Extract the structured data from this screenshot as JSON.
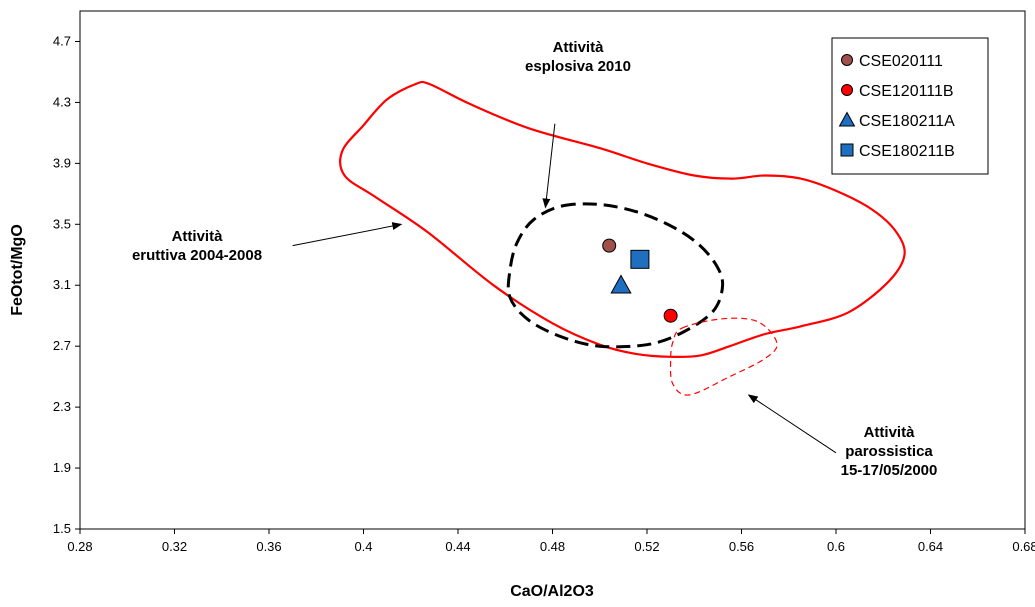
{
  "chart_data": {
    "type": "scatter",
    "xlabel": "CaO/Al2O3",
    "ylabel": "FeOtot/MgO",
    "xlim": [
      0.28,
      0.68
    ],
    "ylim": [
      1.5,
      4.9
    ],
    "x_ticks": [
      "0.28",
      "0.32",
      "0.36",
      "0.4",
      "0.44",
      "0.48",
      "0.52",
      "0.56",
      "0.6",
      "0.64",
      "0.68"
    ],
    "y_ticks": [
      "1.5",
      "1.9",
      "2.3",
      "2.7",
      "3.1",
      "3.5",
      "3.9",
      "4.3",
      "4.7"
    ],
    "grid": false,
    "legend_position": "top-right",
    "series": [
      {
        "name": "CSE020111",
        "marker": "circle",
        "color": "#a0504b",
        "points": [
          {
            "x": 0.504,
            "y": 3.36
          }
        ]
      },
      {
        "name": "CSE120111B",
        "marker": "circle",
        "color": "#ff0000",
        "points": [
          {
            "x": 0.53,
            "y": 2.9
          }
        ]
      },
      {
        "name": "CSE180211A",
        "marker": "triangle",
        "color": "#1f6fc0",
        "points": [
          {
            "x": 0.509,
            "y": 3.1
          }
        ]
      },
      {
        "name": "CSE180211B",
        "marker": "square",
        "color": "#1f6fc0",
        "points": [
          {
            "x": 0.517,
            "y": 3.27
          }
        ]
      }
    ],
    "fields": [
      {
        "name": "eruttiva",
        "style": "solid-red",
        "color": "#ff0000",
        "points": [
          [
            0.422,
            4.42
          ],
          [
            0.428,
            4.42
          ],
          [
            0.445,
            4.29
          ],
          [
            0.47,
            4.13
          ],
          [
            0.5,
            4.0
          ],
          [
            0.52,
            3.9
          ],
          [
            0.54,
            3.82
          ],
          [
            0.556,
            3.8
          ],
          [
            0.57,
            3.82
          ],
          [
            0.585,
            3.8
          ],
          [
            0.6,
            3.72
          ],
          [
            0.615,
            3.6
          ],
          [
            0.625,
            3.46
          ],
          [
            0.629,
            3.3
          ],
          [
            0.622,
            3.12
          ],
          [
            0.605,
            2.92
          ],
          [
            0.585,
            2.83
          ],
          [
            0.57,
            2.78
          ],
          [
            0.555,
            2.7
          ],
          [
            0.543,
            2.64
          ],
          [
            0.53,
            2.63
          ],
          [
            0.515,
            2.65
          ],
          [
            0.5,
            2.71
          ],
          [
            0.48,
            2.85
          ],
          [
            0.455,
            3.1
          ],
          [
            0.427,
            3.45
          ],
          [
            0.405,
            3.68
          ],
          [
            0.392,
            3.82
          ],
          [
            0.391,
            3.98
          ],
          [
            0.4,
            4.15
          ],
          [
            0.41,
            4.32
          ]
        ]
      },
      {
        "name": "esplosiva",
        "style": "dashed-black",
        "color": "#000000",
        "points": [
          [
            0.484,
            3.62
          ],
          [
            0.5,
            3.63
          ],
          [
            0.516,
            3.58
          ],
          [
            0.53,
            3.49
          ],
          [
            0.541,
            3.38
          ],
          [
            0.549,
            3.24
          ],
          [
            0.552,
            3.1
          ],
          [
            0.548,
            2.93
          ],
          [
            0.535,
            2.79
          ],
          [
            0.52,
            2.71
          ],
          [
            0.5,
            2.7
          ],
          [
            0.484,
            2.76
          ],
          [
            0.47,
            2.87
          ],
          [
            0.462,
            3.02
          ],
          [
            0.462,
            3.2
          ],
          [
            0.465,
            3.38
          ],
          [
            0.472,
            3.53
          ]
        ]
      },
      {
        "name": "parossistica",
        "style": "dashed-thin-red",
        "color": "#ff0000",
        "points": [
          [
            0.535,
            2.82
          ],
          [
            0.552,
            2.88
          ],
          [
            0.567,
            2.86
          ],
          [
            0.575,
            2.72
          ],
          [
            0.57,
            2.62
          ],
          [
            0.555,
            2.5
          ],
          [
            0.538,
            2.38
          ],
          [
            0.531,
            2.45
          ],
          [
            0.53,
            2.6
          ],
          [
            0.531,
            2.73
          ]
        ]
      }
    ],
    "annotations": [
      {
        "lines": [
          "Attività",
          "esplosiva  2010"
        ],
        "arrow": {
          "from": [
            0.481,
            4.16
          ],
          "to": [
            0.477,
            3.61
          ]
        }
      },
      {
        "lines": [
          "Attività",
          "eruttiva 2004-2008"
        ],
        "arrow": {
          "from": [
            0.37,
            3.36
          ],
          "to": [
            0.416,
            3.5
          ]
        }
      },
      {
        "lines": [
          "Attività",
          "parossistica",
          "15-17/05/2000"
        ],
        "arrow": {
          "from": [
            0.6,
            2.0
          ],
          "to": [
            0.563,
            2.38
          ]
        }
      }
    ]
  }
}
